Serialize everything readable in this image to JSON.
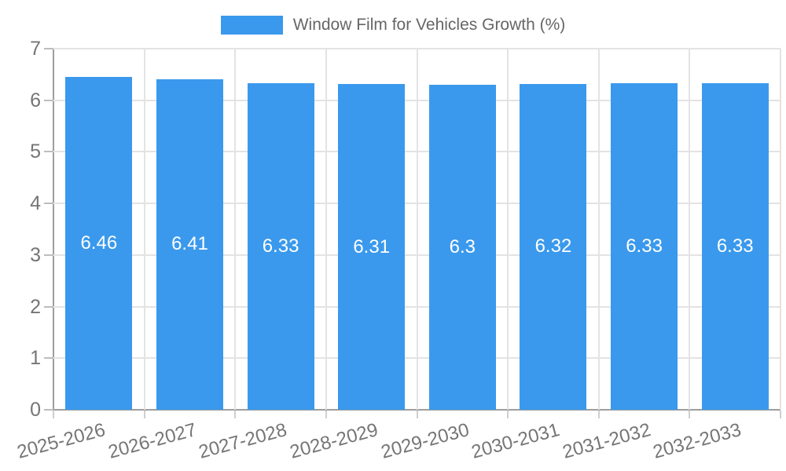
{
  "chart_data": {
    "type": "bar",
    "title": "Window Film for Vehicles Growth (%)",
    "categories": [
      "2025-2026",
      "2026-2027",
      "2027-2028",
      "2028-2029",
      "2029-2030",
      "2030-2031",
      "2031-2032",
      "2032-2033"
    ],
    "values": [
      6.46,
      6.41,
      6.33,
      6.31,
      6.3,
      6.32,
      6.33,
      6.33
    ],
    "value_labels": [
      "6.46",
      "6.41",
      "6.33",
      "6.31",
      "6.3",
      "6.32",
      "6.33",
      "6.33"
    ],
    "xlabel": "",
    "ylabel": "",
    "ylim": [
      0,
      7
    ],
    "ytick_step": 1,
    "ytick_labels": [
      "0",
      "1",
      "2",
      "3",
      "4",
      "5",
      "6",
      "7"
    ],
    "grid": true,
    "legend_position": "top",
    "bar_color": "#3A99EC",
    "value_label_color": "#FFFFFF",
    "axis_text_color": "#757575"
  }
}
